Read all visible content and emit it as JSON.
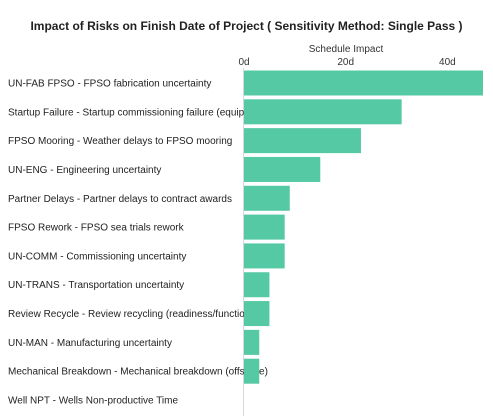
{
  "chart_data": {
    "type": "bar",
    "orientation": "horizontal",
    "title": "Impact of Risks on Finish Date of Project ( Sensitivity Method: Single Pass )",
    "xlabel": "Schedule Impact",
    "ylabel": "",
    "x_ticks": [
      "0d",
      "20d",
      "40d"
    ],
    "x_tick_values": [
      0,
      20,
      40
    ],
    "xlim": [
      0,
      47
    ],
    "grid": false,
    "legend": "none",
    "bar_color": "#55c8a4",
    "categories": [
      "UN-FAB FPSO - FPSO fabrication uncertainty",
      "Startup Failure - Startup commissioning failure (equipment)",
      "FPSO Mooring - Weather delays to FPSO mooring",
      "UN-ENG - Engineering uncertainty",
      "Partner Delays - Partner delays to contract awards",
      "FPSO Rework - FPSO sea trials rework",
      "UN-COMM - Commissioning uncertainty",
      "UN-TRANS - Transportation uncertainty",
      "Review Recycle - Review recycling (readiness/functional)",
      "UN-MAN - Manufacturing uncertainty",
      "Mechanical Breakdown - Mechanical breakdown (offshore)",
      "Well NPT - Wells Non-productive Time"
    ],
    "values": [
      47,
      31,
      23,
      15,
      9,
      8,
      8,
      5,
      5,
      3,
      3,
      0
    ]
  }
}
